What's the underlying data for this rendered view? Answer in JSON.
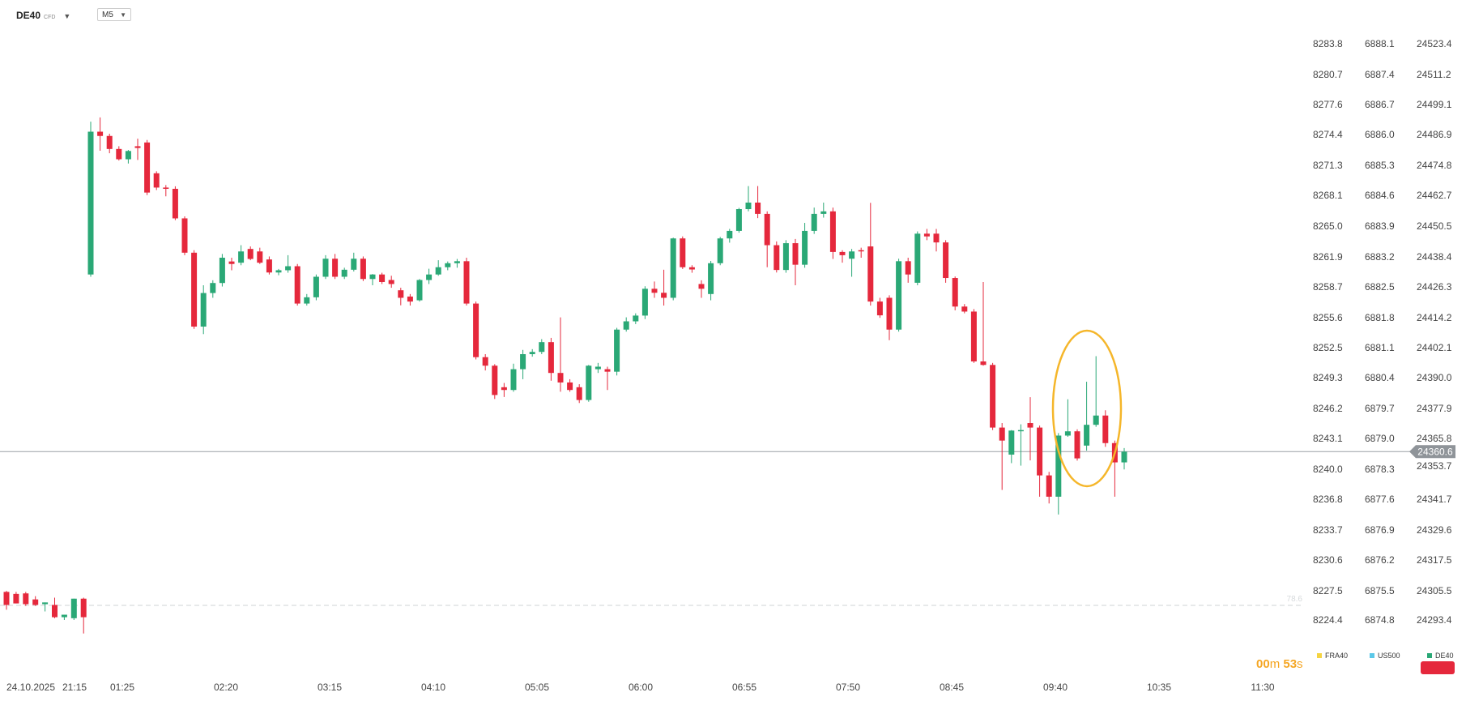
{
  "toolbar": {
    "symbol": "DE40",
    "symbol_tag": "CFD",
    "timeframe": "M5"
  },
  "colors": {
    "up": "#2aa876",
    "down": "#e5283c",
    "highlight": "#f5b62a",
    "price_line": "#9aa0a6",
    "price_tag_bg": "#8f9499",
    "fra40": "#f5d442",
    "us500": "#5bc8e8",
    "de40": "#2aa876"
  },
  "icons": {
    "symbol_dropdown": "chevron-down-icon",
    "timeframe_dropdown": "chevron-down-icon"
  },
  "axes": {
    "fra40": [
      "8283.8",
      "8280.7",
      "8277.6",
      "8274.4",
      "8271.3",
      "8268.1",
      "8265.0",
      "8261.9",
      "8258.7",
      "8255.6",
      "8252.5",
      "8249.3",
      "8246.2",
      "8243.1",
      "8240.0",
      "8236.8",
      "8233.7",
      "8230.6",
      "8227.5",
      "8224.4"
    ],
    "us500": [
      "6888.1",
      "6887.4",
      "6886.7",
      "6886.0",
      "6885.3",
      "6884.6",
      "6883.9",
      "6883.2",
      "6882.5",
      "6881.8",
      "6881.1",
      "6880.4",
      "6879.7",
      "6879.0",
      "6878.3",
      "6877.6",
      "6876.9",
      "6876.2",
      "6875.5",
      "6874.8"
    ],
    "de40": [
      "24523.4",
      "24511.2",
      "24499.1",
      "24486.9",
      "24474.8",
      "24462.7",
      "24450.5",
      "24438.4",
      "24426.3",
      "24414.2",
      "24402.1",
      "24390.0",
      "24377.9",
      "24365.8",
      "",
      "24353.7",
      "24341.7",
      "24329.6",
      "24317.5",
      "24305.5",
      "24293.4"
    ],
    "time_labels": [
      "24.10.2025",
      "21:15",
      "01:25",
      "02:20",
      "03:15",
      "04:10",
      "05:05",
      "06:00",
      "06:55",
      "07:50",
      "08:45",
      "09:40",
      "10:35",
      "11:30"
    ]
  },
  "current_price": "24360.6",
  "fib_label": "78.6",
  "countdown": {
    "minutes": "00",
    "min_unit": "m",
    "seconds": "53",
    "sec_unit": "s"
  },
  "legend": [
    "FRA40",
    "US500",
    "DE40"
  ],
  "chart_data": {
    "type": "candlestick",
    "symbol": "DE40",
    "timeframe": "M5",
    "current_price": 24360.6,
    "ylim": [
      24293.4,
      24523.4
    ],
    "candles": [
      {
        "t": "21:00",
        "o": 24304.6,
        "h": 24305.0,
        "l": 24297.5,
        "c": 24299.4
      },
      {
        "t": "21:05",
        "o": 24303.8,
        "h": 24304.6,
        "l": 24300.0,
        "c": 24300.0
      },
      {
        "t": "21:10",
        "o": 24304.0,
        "h": 24304.6,
        "l": 24299.0,
        "c": 24299.7
      },
      {
        "t": "21:15",
        "o": 24301.6,
        "h": 24302.9,
        "l": 24299.0,
        "c": 24299.4
      },
      {
        "t": "21:20",
        "o": 24299.7,
        "h": 24300.4,
        "l": 24296.8,
        "c": 24300.4
      },
      {
        "t": "21:25",
        "o": 24299.4,
        "h": 24302.3,
        "l": 24294.1,
        "c": 24294.5
      },
      {
        "t": "21:30",
        "o": 24294.5,
        "h": 24295.5,
        "l": 24293.4,
        "c": 24295.5
      },
      {
        "t": "21:35",
        "o": 24294.1,
        "h": 24301.9,
        "l": 24293.4,
        "c": 24301.9
      },
      {
        "t": "21:40",
        "o": 24301.9,
        "h": 24302.3,
        "l": 24288.0,
        "c": 24294.5
      },
      {
        "t": "01:20",
        "o": 24431.3,
        "h": 24492.3,
        "l": 24430.4,
        "c": 24488.3
      },
      {
        "t": "01:25",
        "o": 24488.3,
        "h": 24494.0,
        "l": 24480.7,
        "c": 24486.6
      },
      {
        "t": "01:30",
        "o": 24486.6,
        "h": 24487.5,
        "l": 24479.7,
        "c": 24481.4
      },
      {
        "t": "01:35",
        "o": 24481.4,
        "h": 24482.5,
        "l": 24476.8,
        "c": 24477.3
      },
      {
        "t": "01:40",
        "o": 24477.3,
        "h": 24481.0,
        "l": 24475.6,
        "c": 24480.6
      },
      {
        "t": "01:45",
        "o": 24482.5,
        "h": 24485.5,
        "l": 24477.0,
        "c": 24481.8
      },
      {
        "t": "01:50",
        "o": 24484.0,
        "h": 24485.0,
        "l": 24463.0,
        "c": 24464.0
      },
      {
        "t": "01:55",
        "o": 24471.7,
        "h": 24472.5,
        "l": 24465.0,
        "c": 24466.0
      },
      {
        "t": "02:00",
        "o": 24466.0,
        "h": 24467.0,
        "l": 24462.5,
        "c": 24465.5
      },
      {
        "t": "02:05",
        "o": 24465.5,
        "h": 24466.5,
        "l": 24453.0,
        "c": 24453.7
      },
      {
        "t": "02:10",
        "o": 24453.7,
        "h": 24454.5,
        "l": 24439.0,
        "c": 24440.0
      },
      {
        "t": "02:15",
        "o": 24440.0,
        "h": 24441.0,
        "l": 24409.6,
        "c": 24410.5
      },
      {
        "t": "02:20",
        "o": 24410.5,
        "h": 24427.0,
        "l": 24407.5,
        "c": 24423.9
      },
      {
        "t": "02:25",
        "o": 24423.9,
        "h": 24429.0,
        "l": 24422.0,
        "c": 24427.9
      },
      {
        "t": "02:30",
        "o": 24427.9,
        "h": 24439.5,
        "l": 24426.5,
        "c": 24438.0
      },
      {
        "t": "02:35",
        "o": 24436.5,
        "h": 24438.0,
        "l": 24433.0,
        "c": 24435.5
      },
      {
        "t": "02:40",
        "o": 24436.0,
        "h": 24443.0,
        "l": 24435.0,
        "c": 24440.5
      },
      {
        "t": "02:45",
        "o": 24441.5,
        "h": 24442.5,
        "l": 24437.0,
        "c": 24437.5
      },
      {
        "t": "02:50",
        "o": 24440.5,
        "h": 24442.0,
        "l": 24435.5,
        "c": 24436.0
      },
      {
        "t": "02:55",
        "o": 24437.3,
        "h": 24438.5,
        "l": 24431.3,
        "c": 24432.1
      },
      {
        "t": "03:00",
        "o": 24432.1,
        "h": 24433.5,
        "l": 24431.0,
        "c": 24433.0
      },
      {
        "t": "03:05",
        "o": 24433.0,
        "h": 24439.0,
        "l": 24432.0,
        "c": 24434.6
      },
      {
        "t": "03:10",
        "o": 24434.6,
        "h": 24435.5,
        "l": 24418.9,
        "c": 24419.7
      },
      {
        "t": "03:15",
        "o": 24419.7,
        "h": 24423.5,
        "l": 24418.9,
        "c": 24422.2
      },
      {
        "t": "03:20",
        "o": 24422.2,
        "h": 24431.3,
        "l": 24421.0,
        "c": 24430.4
      },
      {
        "t": "03:25",
        "o": 24430.4,
        "h": 24439.0,
        "l": 24429.5,
        "c": 24437.6
      },
      {
        "t": "03:30",
        "o": 24437.6,
        "h": 24439.5,
        "l": 24429.5,
        "c": 24430.4
      },
      {
        "t": "03:35",
        "o": 24430.4,
        "h": 24434.0,
        "l": 24429.5,
        "c": 24433.2
      },
      {
        "t": "03:40",
        "o": 24433.2,
        "h": 24440.0,
        "l": 24432.5,
        "c": 24437.6
      },
      {
        "t": "03:45",
        "o": 24437.6,
        "h": 24438.5,
        "l": 24428.7,
        "c": 24429.5
      },
      {
        "t": "03:50",
        "o": 24429.5,
        "h": 24431.5,
        "l": 24427.0,
        "c": 24431.3
      },
      {
        "t": "03:55",
        "o": 24431.3,
        "h": 24432.0,
        "l": 24427.5,
        "c": 24428.3
      },
      {
        "t": "04:00",
        "o": 24429.1,
        "h": 24430.8,
        "l": 24426.0,
        "c": 24427.5
      },
      {
        "t": "04:05",
        "o": 24425.0,
        "h": 24426.0,
        "l": 24419.0,
        "c": 24422.0
      },
      {
        "t": "04:10",
        "o": 24422.5,
        "h": 24423.5,
        "l": 24418.9,
        "c": 24420.5
      },
      {
        "t": "04:15",
        "o": 24421.0,
        "h": 24429.5,
        "l": 24420.5,
        "c": 24429.1
      },
      {
        "t": "04:20",
        "o": 24429.1,
        "h": 24433.6,
        "l": 24427.5,
        "c": 24431.3
      },
      {
        "t": "04:25",
        "o": 24431.3,
        "h": 24437.0,
        "l": 24430.8,
        "c": 24434.2
      },
      {
        "t": "04:30",
        "o": 24434.2,
        "h": 24436.5,
        "l": 24433.0,
        "c": 24435.8
      },
      {
        "t": "04:35",
        "o": 24435.8,
        "h": 24437.5,
        "l": 24434.0,
        "c": 24436.6
      },
      {
        "t": "04:40",
        "o": 24436.6,
        "h": 24438.0,
        "l": 24418.9,
        "c": 24419.7
      },
      {
        "t": "04:45",
        "o": 24419.7,
        "h": 24420.5,
        "l": 24397.4,
        "c": 24398.3
      },
      {
        "t": "04:50",
        "o": 24398.3,
        "h": 24399.5,
        "l": 24393.0,
        "c": 24394.9
      },
      {
        "t": "04:55",
        "o": 24394.9,
        "h": 24395.5,
        "l": 24381.6,
        "c": 24383.2
      },
      {
        "t": "05:00",
        "o": 24386.3,
        "h": 24388.0,
        "l": 24382.4,
        "c": 24385.2
      },
      {
        "t": "05:05",
        "o": 24385.2,
        "h": 24395.7,
        "l": 24384.5,
        "c": 24393.5
      },
      {
        "t": "05:10",
        "o": 24393.5,
        "h": 24401.2,
        "l": 24389.5,
        "c": 24399.5
      },
      {
        "t": "05:15",
        "o": 24399.5,
        "h": 24401.5,
        "l": 24398.5,
        "c": 24400.4
      },
      {
        "t": "05:20",
        "o": 24400.4,
        "h": 24405.5,
        "l": 24399.5,
        "c": 24404.3
      },
      {
        "t": "05:25",
        "o": 24404.3,
        "h": 24406.0,
        "l": 24388.9,
        "c": 24392.0
      },
      {
        "t": "05:30",
        "o": 24392.0,
        "h": 24414.2,
        "l": 24384.5,
        "c": 24388.2
      },
      {
        "t": "05:35",
        "o": 24388.2,
        "h": 24389.5,
        "l": 24384.5,
        "c": 24385.2
      },
      {
        "t": "05:40",
        "o": 24386.3,
        "h": 24387.5,
        "l": 24380.0,
        "c": 24381.2
      },
      {
        "t": "05:45",
        "o": 24381.2,
        "h": 24395.2,
        "l": 24380.5,
        "c": 24394.9
      },
      {
        "t": "05:50",
        "o": 24393.5,
        "h": 24396.0,
        "l": 24392.0,
        "c": 24394.5
      },
      {
        "t": "05:55",
        "o": 24393.5,
        "h": 24394.5,
        "l": 24385.2,
        "c": 24392.5
      },
      {
        "t": "06:00",
        "o": 24392.5,
        "h": 24410.0,
        "l": 24391.0,
        "c": 24409.3
      },
      {
        "t": "06:05",
        "o": 24409.3,
        "h": 24414.2,
        "l": 24408.5,
        "c": 24412.6
      },
      {
        "t": "06:10",
        "o": 24412.6,
        "h": 24415.8,
        "l": 24411.5,
        "c": 24414.9
      },
      {
        "t": "06:15",
        "o": 24414.9,
        "h": 24426.6,
        "l": 24413.5,
        "c": 24425.6
      },
      {
        "t": "06:20",
        "o": 24425.6,
        "h": 24428.5,
        "l": 24422.0,
        "c": 24424.0
      },
      {
        "t": "06:25",
        "o": 24424.0,
        "h": 24433.2,
        "l": 24418.9,
        "c": 24422.0
      },
      {
        "t": "06:30",
        "o": 24422.0,
        "h": 24446.0,
        "l": 24421.0,
        "c": 24445.7
      },
      {
        "t": "06:35",
        "o": 24445.7,
        "h": 24446.5,
        "l": 24433.5,
        "c": 24434.2
      },
      {
        "t": "06:40",
        "o": 24434.2,
        "h": 24435.0,
        "l": 24432.0,
        "c": 24433.3
      },
      {
        "t": "06:45",
        "o": 24427.5,
        "h": 24429.0,
        "l": 24422.0,
        "c": 24425.6
      },
      {
        "t": "06:50",
        "o": 24423.5,
        "h": 24436.7,
        "l": 24421.0,
        "c": 24435.8
      },
      {
        "t": "06:55",
        "o": 24435.8,
        "h": 24446.3,
        "l": 24435.0,
        "c": 24445.7
      },
      {
        "t": "07:00",
        "o": 24445.7,
        "h": 24449.5,
        "l": 24444.0,
        "c": 24448.7
      },
      {
        "t": "07:05",
        "o": 24448.7,
        "h": 24457.9,
        "l": 24448.0,
        "c": 24457.4
      },
      {
        "t": "07:10",
        "o": 24457.4,
        "h": 24466.6,
        "l": 24456.5,
        "c": 24460.0
      },
      {
        "t": "07:15",
        "o": 24460.0,
        "h": 24466.6,
        "l": 24453.8,
        "c": 24455.5
      },
      {
        "t": "07:20",
        "o": 24455.5,
        "h": 24456.5,
        "l": 24434.2,
        "c": 24443.0
      },
      {
        "t": "07:25",
        "o": 24443.0,
        "h": 24444.5,
        "l": 24432.1,
        "c": 24433.1
      },
      {
        "t": "07:30",
        "o": 24433.1,
        "h": 24445.0,
        "l": 24432.0,
        "c": 24443.8
      },
      {
        "t": "07:35",
        "o": 24443.8,
        "h": 24445.5,
        "l": 24427.0,
        "c": 24435.2
      },
      {
        "t": "07:40",
        "o": 24435.2,
        "h": 24451.9,
        "l": 24434.0,
        "c": 24448.7
      },
      {
        "t": "07:45",
        "o": 24448.7,
        "h": 24458.0,
        "l": 24447.5,
        "c": 24455.5
      },
      {
        "t": "07:50",
        "o": 24455.5,
        "h": 24460.0,
        "l": 24454.0,
        "c": 24456.5
      },
      {
        "t": "07:55",
        "o": 24456.5,
        "h": 24458.0,
        "l": 24437.5,
        "c": 24440.3
      },
      {
        "t": "08:00",
        "o": 24440.3,
        "h": 24441.0,
        "l": 24436.0,
        "c": 24439.0
      },
      {
        "t": "08:05",
        "o": 24437.6,
        "h": 24441.5,
        "l": 24430.4,
        "c": 24440.5
      },
      {
        "t": "08:10",
        "o": 24441.0,
        "h": 24442.0,
        "l": 24438.0,
        "c": 24440.8
      },
      {
        "t": "08:15",
        "o": 24442.5,
        "h": 24459.9,
        "l": 24418.9,
        "c": 24420.5
      },
      {
        "t": "08:20",
        "o": 24420.5,
        "h": 24422.0,
        "l": 24414.0,
        "c": 24415.0
      },
      {
        "t": "08:25",
        "o": 24422.0,
        "h": 24423.0,
        "l": 24405.1,
        "c": 24409.3
      },
      {
        "t": "08:30",
        "o": 24409.3,
        "h": 24437.6,
        "l": 24408.5,
        "c": 24436.6
      },
      {
        "t": "08:35",
        "o": 24436.6,
        "h": 24438.0,
        "l": 24428.0,
        "c": 24431.3
      },
      {
        "t": "08:40",
        "o": 24428.0,
        "h": 24448.5,
        "l": 24427.0,
        "c": 24447.6
      },
      {
        "t": "08:45",
        "o": 24447.6,
        "h": 24449.5,
        "l": 24445.0,
        "c": 24446.5
      },
      {
        "t": "08:50",
        "o": 24447.6,
        "h": 24449.5,
        "l": 24440.5,
        "c": 24444.1
      },
      {
        "t": "08:55",
        "o": 24444.1,
        "h": 24445.0,
        "l": 24428.0,
        "c": 24429.9
      },
      {
        "t": "09:00",
        "o": 24429.9,
        "h": 24430.5,
        "l": 24417.0,
        "c": 24418.5
      },
      {
        "t": "09:05",
        "o": 24418.5,
        "h": 24419.5,
        "l": 24415.8,
        "c": 24416.5
      },
      {
        "t": "09:10",
        "o": 24416.5,
        "h": 24417.5,
        "l": 24396.0,
        "c": 24396.6
      },
      {
        "t": "09:15",
        "o": 24396.6,
        "h": 24428.3,
        "l": 24394.9,
        "c": 24395.2
      },
      {
        "t": "09:20",
        "o": 24395.2,
        "h": 24396.0,
        "l": 24369.2,
        "c": 24370.2
      },
      {
        "t": "09:25",
        "o": 24370.2,
        "h": 24372.0,
        "l": 24345.3,
        "c": 24365.0
      },
      {
        "t": "09:30",
        "o": 24359.4,
        "h": 24369.2,
        "l": 24356.0,
        "c": 24369.0
      },
      {
        "t": "09:35",
        "o": 24369.0,
        "h": 24371.5,
        "l": 24355.0,
        "c": 24369.2
      },
      {
        "t": "09:40",
        "o": 24372.0,
        "h": 24382.3,
        "l": 24357.1,
        "c": 24370.2
      },
      {
        "t": "09:45",
        "o": 24370.2,
        "h": 24371.0,
        "l": 24342.6,
        "c": 24351.1
      },
      {
        "t": "09:50",
        "o": 24351.1,
        "h": 24352.5,
        "l": 24339.9,
        "c": 24342.6
      },
      {
        "t": "09:55",
        "o": 24342.6,
        "h": 24368.0,
        "l": 24335.5,
        "c": 24367.0
      },
      {
        "t": "10:00",
        "o": 24367.0,
        "h": 24381.5,
        "l": 24366.5,
        "c": 24368.7
      },
      {
        "t": "10:05",
        "o": 24368.7,
        "h": 24369.5,
        "l": 24357.0,
        "c": 24357.9
      },
      {
        "t": "10:10",
        "o": 24363.0,
        "h": 24388.5,
        "l": 24361.0,
        "c": 24371.3
      },
      {
        "t": "10:15",
        "o": 24371.3,
        "h": 24398.7,
        "l": 24370.5,
        "c": 24375.0
      },
      {
        "t": "10:20",
        "o": 24375.0,
        "h": 24377.1,
        "l": 24362.5,
        "c": 24364.0
      },
      {
        "t": "10:25",
        "o": 24364.0,
        "h": 24365.0,
        "l": 24342.6,
        "c": 24356.3
      },
      {
        "t": "10:30",
        "o": 24356.3,
        "h": 24362.0,
        "l": 24353.5,
        "c": 24360.6
      }
    ]
  }
}
